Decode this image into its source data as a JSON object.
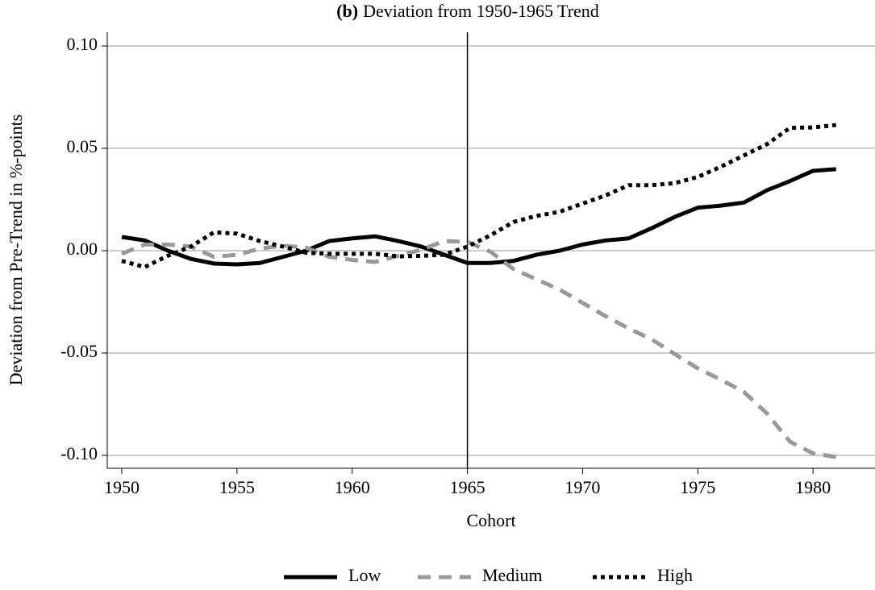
{
  "chart_data": {
    "type": "line",
    "panel_label": "(b)",
    "title": "Deviation from 1950-1965 Trend",
    "x_label": "Cohort",
    "y_label": "Deviation from Pre-Trend in %-points",
    "x": [
      1950,
      1951,
      1952,
      1953,
      1954,
      1955,
      1956,
      1957,
      1958,
      1959,
      1960,
      1961,
      1962,
      1963,
      1964,
      1965,
      1966,
      1967,
      1968,
      1969,
      1970,
      1971,
      1972,
      1973,
      1974,
      1975,
      1976,
      1977,
      1978,
      1979,
      1980,
      1981
    ],
    "series": [
      {
        "name": "Low",
        "color": "#000000",
        "style": "solid",
        "values": [
          0.0067,
          0.005,
          0.0,
          -0.004,
          -0.0063,
          -0.0067,
          -0.006,
          -0.003,
          0.0,
          0.0047,
          0.006,
          0.007,
          0.0047,
          0.002,
          -0.002,
          -0.006,
          -0.006,
          -0.005,
          -0.002,
          0.0,
          0.003,
          0.005,
          0.006,
          0.011,
          0.0165,
          0.021,
          0.022,
          0.0235,
          0.0295,
          0.034,
          0.039,
          0.0398
        ]
      },
      {
        "name": "Medium",
        "color": "#999999",
        "style": "dashed",
        "values": [
          -0.0015,
          0.003,
          0.003,
          0.002,
          -0.003,
          -0.002,
          0.001,
          0.0025,
          0.0015,
          -0.003,
          -0.0045,
          -0.0055,
          -0.0025,
          0.0005,
          0.0047,
          0.0043,
          -0.0005,
          -0.009,
          -0.014,
          -0.019,
          -0.0255,
          -0.032,
          -0.038,
          -0.0433,
          -0.0505,
          -0.0575,
          -0.063,
          -0.069,
          -0.0795,
          -0.0933,
          -0.099,
          -0.1008
        ]
      },
      {
        "name": "High",
        "color": "#000000",
        "style": "dotted",
        "values": [
          -0.005,
          -0.008,
          -0.0025,
          0.002,
          0.009,
          0.0083,
          0.0047,
          0.002,
          -0.001,
          -0.0015,
          -0.0015,
          -0.0015,
          -0.0028,
          -0.0025,
          -0.002,
          0.002,
          0.0075,
          0.014,
          0.017,
          0.019,
          0.023,
          0.027,
          0.032,
          0.032,
          0.033,
          0.036,
          0.041,
          0.0465,
          0.052,
          0.06,
          0.0602,
          0.0614
        ]
      }
    ],
    "xlim": [
      1949.37,
      1982.69
    ],
    "ylim": [
      -0.1063,
      0.1067
    ],
    "xticks": [
      1950,
      1955,
      1960,
      1965,
      1970,
      1975,
      1980
    ],
    "yticks": [
      {
        "value": 0.1,
        "label": "0.10"
      },
      {
        "value": 0.05,
        "label": "0.05"
      },
      {
        "value": 0,
        "label": "0.00"
      },
      {
        "value": -0.05,
        "label": "-0.05"
      },
      {
        "value": -0.1,
        "label": "-0.10"
      }
    ],
    "vline": 1965,
    "grid": true,
    "legend": "bottom"
  }
}
